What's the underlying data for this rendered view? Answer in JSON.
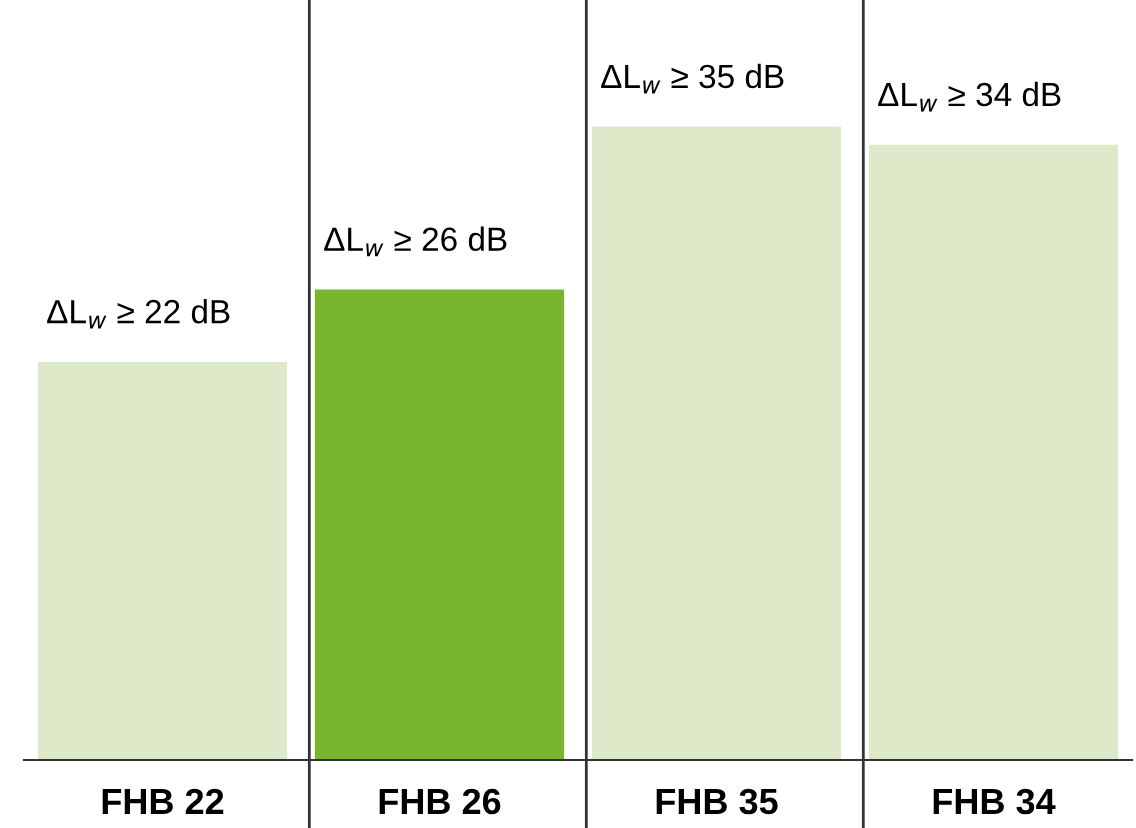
{
  "chart_data": {
    "type": "bar",
    "categories": [
      "FHB 22",
      "FHB 26",
      "FHB 35",
      "FHB 34"
    ],
    "values": [
      22,
      26,
      35,
      34
    ],
    "colors": [
      "#dde9c8",
      "#7ab52f",
      "#dde9c8",
      "#dde9c8"
    ],
    "value_labels": [
      "ΔL$_{w}$ ≥ 22 dB",
      "ΔL$_{w}$ ≥ 26 dB",
      "ΔL$_{w}$ ≥ 35 dB",
      "ΔL$_{w}$ ≥ 34 dB"
    ]
  }
}
